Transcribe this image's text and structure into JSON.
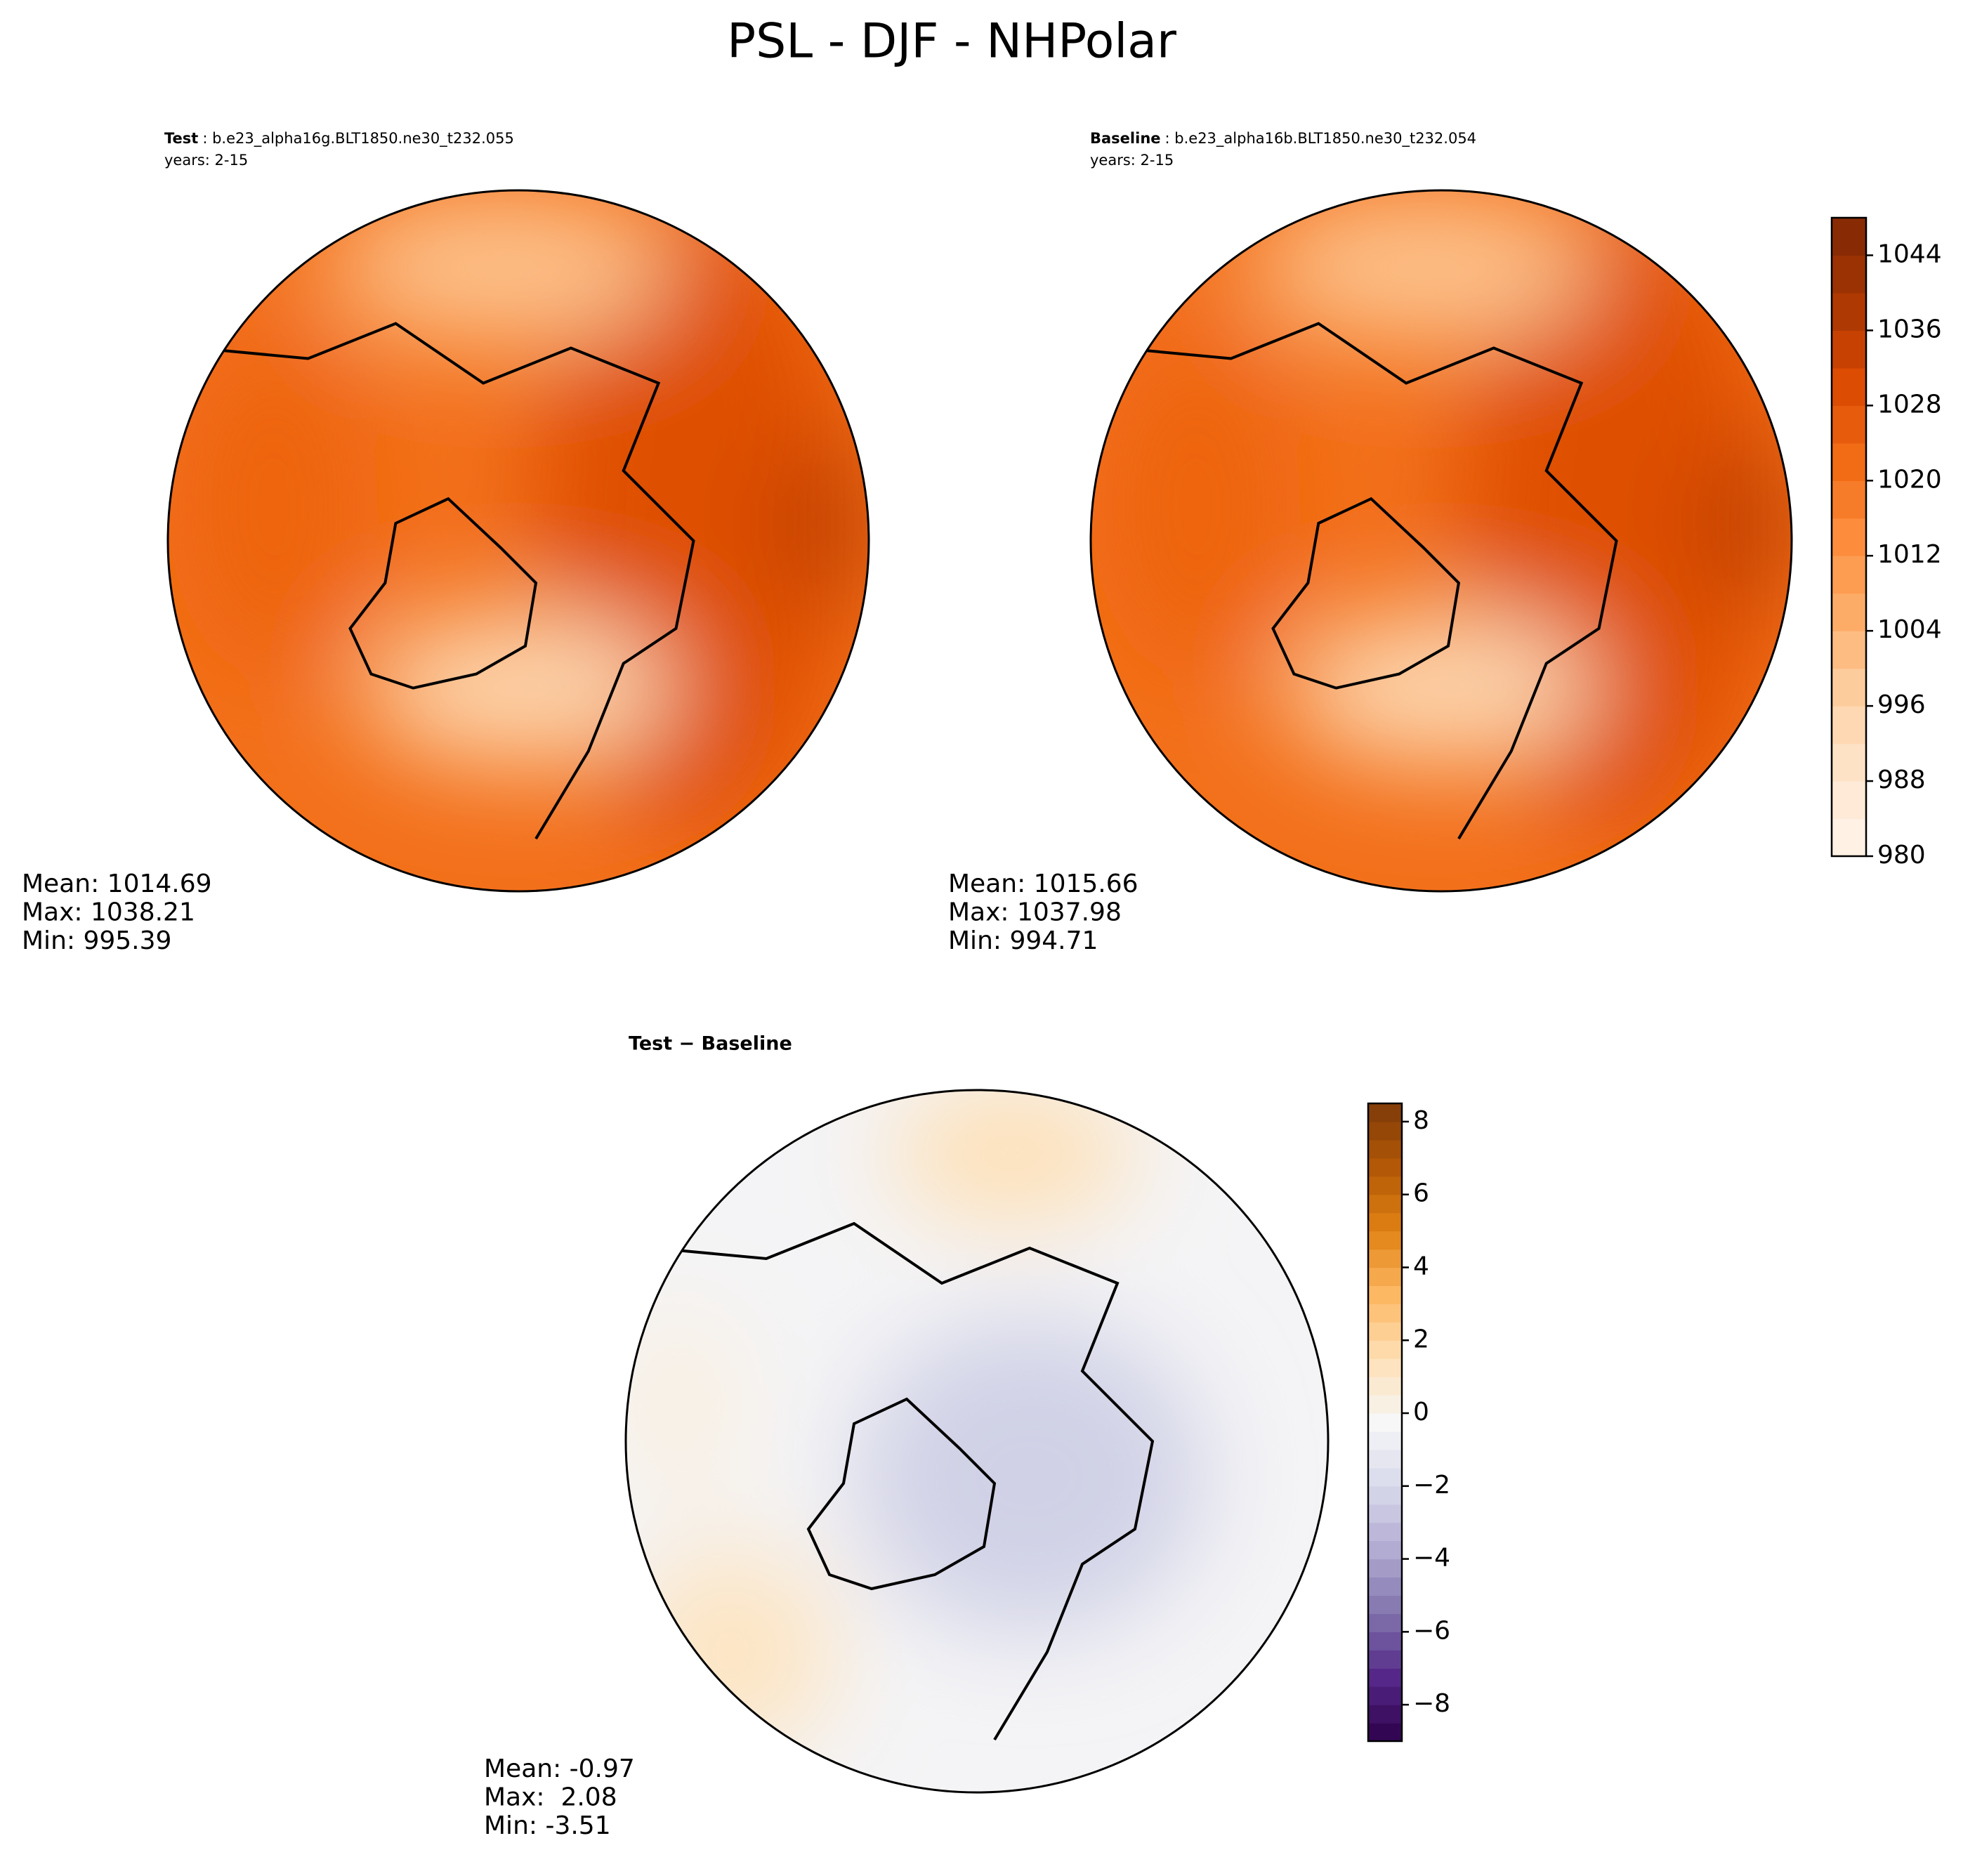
{
  "title": "PSL - DJF - NHPolar",
  "chart_data": [
    {
      "type": "map",
      "title": "Test",
      "case": ": b.e23_alpha16g.BLT1850.ne30_t232.055",
      "years": "years: 2-15",
      "stats": [
        "Mean: 1014.69",
        "Max: 1038.21",
        "Min: 995.39"
      ],
      "colormap": "Oranges"
    },
    {
      "type": "map",
      "title": "Baseline",
      "case": ": b.e23_alpha16b.BLT1850.ne30_t232.054",
      "years": "years: 2-15",
      "stats": [
        "Mean: 1015.66",
        "Max: 1037.98",
        "Min: 994.71"
      ],
      "colormap": "Oranges",
      "colorbar": {
        "ylim": [
          980,
          1048
        ],
        "yticks": [
          980,
          988,
          996,
          1004,
          1012,
          1020,
          1028,
          1036,
          1044
        ]
      }
    },
    {
      "type": "map",
      "title": "Test − Baseline",
      "stats": [
        "Mean: -0.97",
        "Max:  2.08",
        "Min: -3.51"
      ],
      "colormap": "PuOr_r",
      "colorbar": {
        "ylim": [
          -9,
          8.5
        ],
        "yticks": [
          {
            "value": -8,
            "label": "−8"
          },
          {
            "value": -6,
            "label": "−6"
          },
          {
            "value": -4,
            "label": "−4"
          },
          {
            "value": -2,
            "label": "−2"
          },
          0,
          2,
          4,
          6,
          8
        ]
      }
    }
  ]
}
